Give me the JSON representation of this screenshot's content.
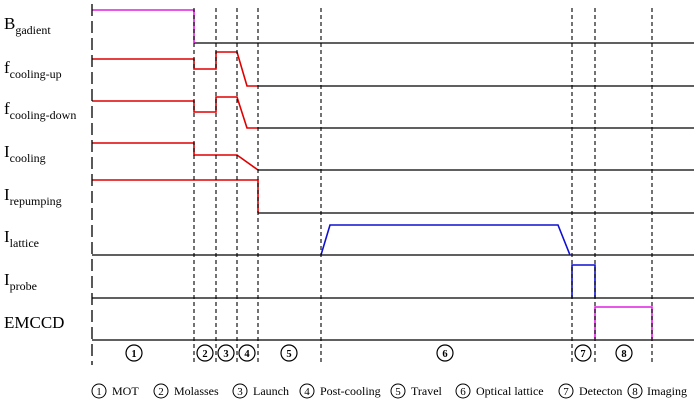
{
  "colors": {
    "axis": "#000000",
    "red": "#e00000",
    "blue": "#1010d0",
    "magenta": "#e020e0"
  },
  "channels": [
    {
      "main": "B",
      "sub": "gadient",
      "color": "#e020e0"
    },
    {
      "main": "f",
      "sub": "cooling-up",
      "color": "#e00000"
    },
    {
      "main": "f",
      "sub": "cooling-down",
      "color": "#e00000"
    },
    {
      "main": "I",
      "sub": "cooling",
      "color": "#e00000"
    },
    {
      "main": "I",
      "sub": "repumping",
      "color": "#e00000"
    },
    {
      "main": "I",
      "sub": "lattice",
      "color": "#1010d0"
    },
    {
      "main": "I",
      "sub": "probe",
      "color": "#1010d0"
    },
    {
      "main": "EMCCD",
      "sub": "",
      "color": "#e020e0"
    }
  ],
  "stages": [
    {
      "num": "1",
      "label": "MOT"
    },
    {
      "num": "2",
      "label": "Molasses"
    },
    {
      "num": "3",
      "label": "Launch"
    },
    {
      "num": "4",
      "label": "Post-cooling"
    },
    {
      "num": "5",
      "label": "Travel"
    },
    {
      "num": "6",
      "label": "Optical lattice"
    },
    {
      "num": "7",
      "label": "Detecton"
    },
    {
      "num": "8",
      "label": "Imaging"
    }
  ]
}
